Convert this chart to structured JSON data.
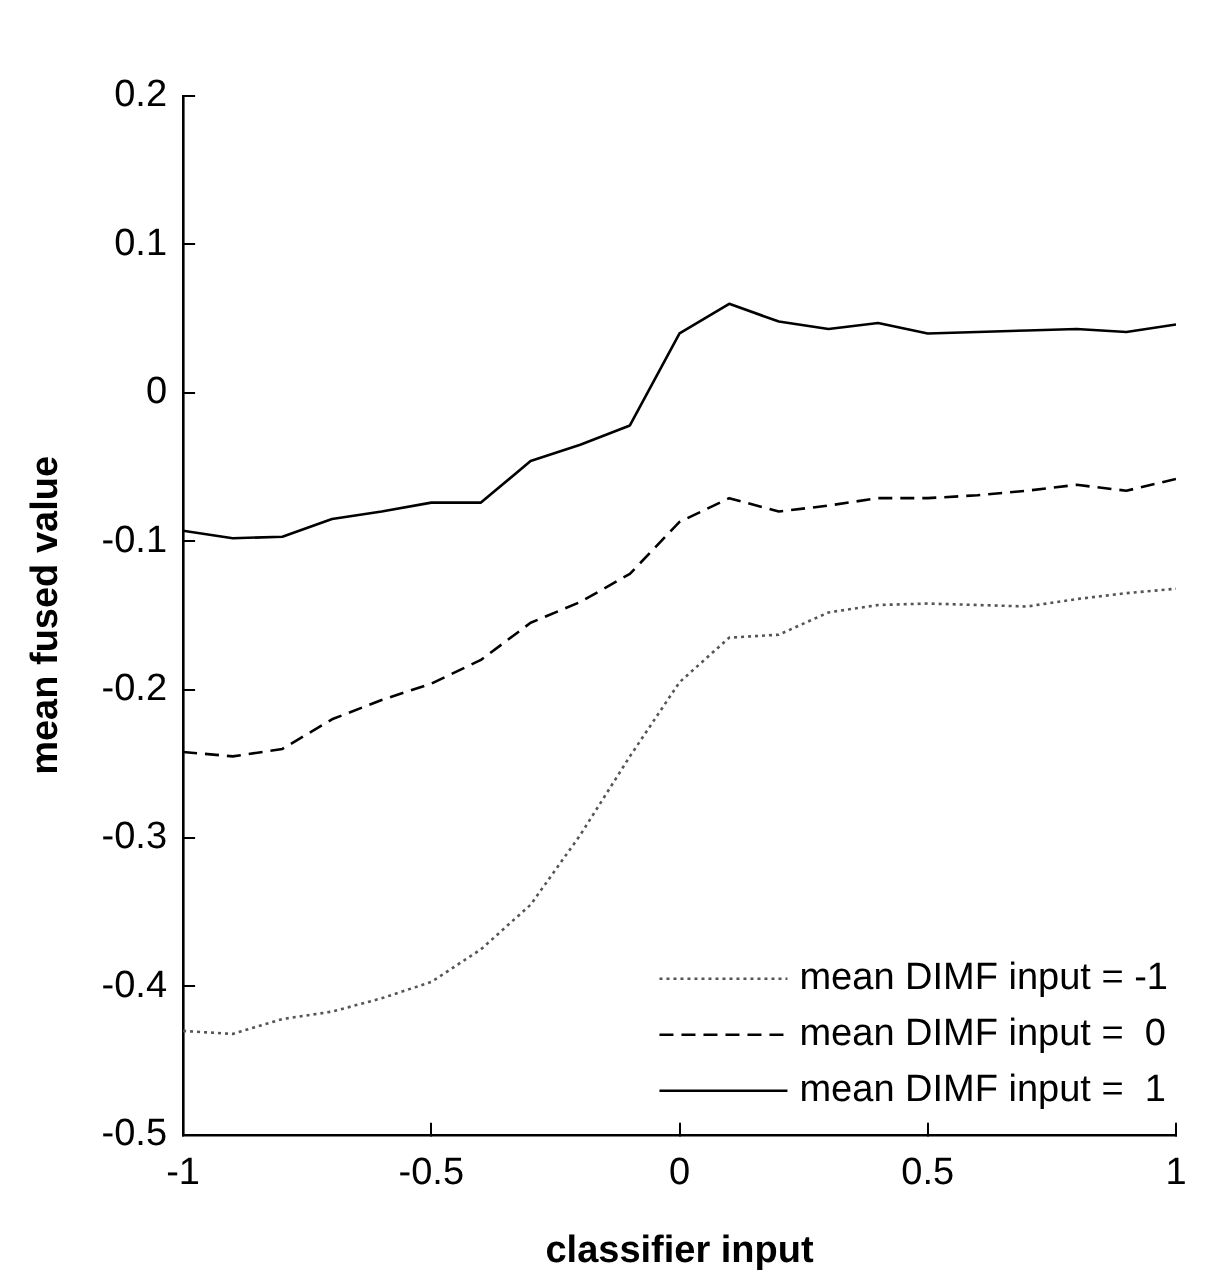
{
  "chart_data": {
    "type": "line",
    "xlabel": "classifier input",
    "ylabel": "mean fused value",
    "x": [
      -1,
      -0.9,
      -0.8,
      -0.7,
      -0.6,
      -0.5,
      -0.4,
      -0.3,
      -0.2,
      -0.1,
      0,
      0.1,
      0.2,
      0.3,
      0.4,
      0.5,
      0.6,
      0.7,
      0.8,
      0.9,
      1
    ],
    "series": [
      {
        "name": "mean DIMF input = -1",
        "color": "#555555",
        "line_style": "dotted",
        "values": [
          -0.43,
          -0.432,
          -0.422,
          -0.417,
          -0.408,
          -0.397,
          -0.375,
          -0.345,
          -0.298,
          -0.245,
          -0.195,
          -0.165,
          -0.163,
          -0.148,
          -0.143,
          -0.142,
          -0.143,
          -0.144,
          -0.139,
          -0.135,
          -0.132
        ]
      },
      {
        "name": "mean DIMF input =  0",
        "color": "#000000",
        "line_style": "dashed",
        "values": [
          -0.242,
          -0.245,
          -0.24,
          -0.22,
          -0.207,
          -0.196,
          -0.18,
          -0.155,
          -0.141,
          -0.122,
          -0.087,
          -0.071,
          -0.08,
          -0.076,
          -0.071,
          -0.071,
          -0.069,
          -0.066,
          -0.062,
          -0.066,
          -0.058
        ]
      },
      {
        "name": "mean DIMF input =  1",
        "color": "#000000",
        "line_style": "solid",
        "values": [
          -0.093,
          -0.098,
          -0.097,
          -0.085,
          -0.08,
          -0.074,
          -0.074,
          -0.046,
          -0.035,
          -0.022,
          0.04,
          0.06,
          0.048,
          0.043,
          0.047,
          0.04,
          0.041,
          0.042,
          0.043,
          0.041,
          0.046
        ]
      }
    ],
    "xlim": [
      -1,
      1
    ],
    "xticks": [
      -1,
      -0.5,
      0,
      0.5,
      1
    ],
    "ylim": [
      -0.5,
      0.2
    ],
    "yticks": [
      -0.5,
      -0.4,
      -0.3,
      -0.2,
      -0.1,
      0,
      0.1,
      0.2
    ],
    "grid": false,
    "legend": "bottom right",
    "marker": "none"
  }
}
